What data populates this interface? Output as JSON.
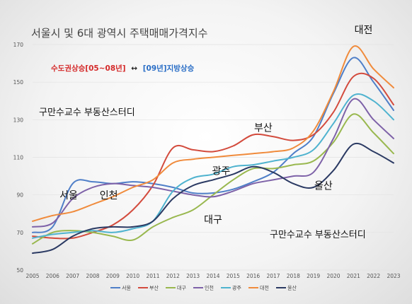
{
  "chart_data": {
    "type": "line",
    "title": "서울시 및 6대 광역시 주택매매가격지수",
    "subtitle_red": "수도권상승[05~08년]",
    "subtitle_arrow": "↔",
    "subtitle_blue": "[09년]지방상승",
    "watermark_1": "구만수교수 부동산스터디",
    "watermark_2": "구만수교수 부동산스터디",
    "xlabel": "",
    "ylabel": "",
    "ylim": [
      50,
      170
    ],
    "yticks": [
      "50",
      "70",
      "90",
      "110",
      "130",
      "150",
      "170"
    ],
    "categories": [
      "2005",
      "2006",
      "2007",
      "2008",
      "2009",
      "2010",
      "2011",
      "2012",
      "2013",
      "2014",
      "2015",
      "2016",
      "2017",
      "2018",
      "2019",
      "2020",
      "2021",
      "2022",
      "2023"
    ],
    "series": [
      {
        "name": "서울",
        "color": "#4f7fc8",
        "values": [
          70,
          73,
          96,
          97,
          96,
          97,
          96,
          94,
          91,
          91,
          93,
          97,
          102,
          112,
          121,
          144,
          163,
          150,
          135
        ]
      },
      {
        "name": "부산",
        "color": "#d34b3d",
        "values": [
          68,
          67,
          67,
          70,
          74,
          82,
          95,
          115,
          114,
          113,
          116,
          122,
          121,
          119,
          122,
          134,
          153,
          152,
          138
        ]
      },
      {
        "name": "대구",
        "color": "#99b84f",
        "values": [
          64,
          70,
          71,
          70,
          68,
          66,
          73,
          78,
          82,
          90,
          98,
          104,
          104,
          106,
          108,
          118,
          133,
          123,
          112
        ]
      },
      {
        "name": "인천",
        "color": "#7e62a8",
        "values": [
          73,
          75,
          88,
          94,
          96,
          95,
          94,
          92,
          90,
          89,
          92,
          96,
          98,
          100,
          102,
          120,
          141,
          130,
          120
        ]
      },
      {
        "name": "광주",
        "color": "#4fb3cf",
        "values": [
          67,
          69,
          70,
          71,
          70,
          72,
          76,
          92,
          99,
          101,
          105,
          106,
          108,
          110,
          114,
          128,
          143,
          140,
          130
        ]
      },
      {
        "name": "대전",
        "color": "#f08b3c",
        "values": [
          76,
          79,
          81,
          85,
          89,
          94,
          98,
          107,
          109,
          110,
          111,
          112,
          113,
          115,
          124,
          145,
          169,
          157,
          147
        ]
      },
      {
        "name": "울산",
        "color": "#2b3a63",
        "values": [
          59,
          61,
          68,
          72,
          73,
          73,
          76,
          88,
          95,
          98,
          101,
          105,
          102,
          96,
          94,
          103,
          117,
          113,
          107
        ]
      }
    ],
    "annotations": [
      {
        "text": "대전",
        "x": 2021.5,
        "y": 176
      },
      {
        "text": "부산",
        "x": 2016.5,
        "y": 124
      },
      {
        "text": "광주",
        "x": 2014.4,
        "y": 101
      },
      {
        "text": "서울",
        "x": 2006.8,
        "y": 88
      },
      {
        "text": "인천",
        "x": 2008.8,
        "y": 88
      },
      {
        "text": "대구",
        "x": 2014,
        "y": 75
      },
      {
        "text": "울산",
        "x": 2019.5,
        "y": 93
      }
    ],
    "legend_position": "bottom",
    "grid": true
  }
}
